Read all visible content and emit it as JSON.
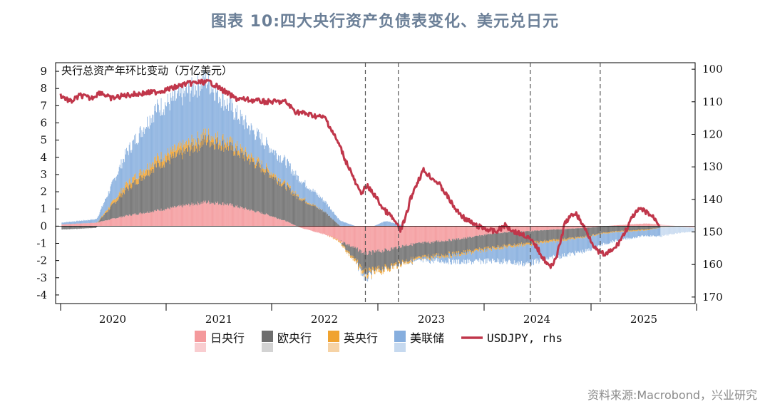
{
  "title": "图表 10:四大央行资产负债表变化、美元兑日元",
  "source": "资料来源:Macrobond，兴业研究",
  "chart_data": {
    "type": "bar",
    "stacked": true,
    "annotation": "央行总资产年环比变动（万亿美元）",
    "y_left": {
      "range": [
        -4.5,
        9.5
      ],
      "ticks": [
        9,
        8,
        7,
        6,
        5,
        4,
        3,
        2,
        1,
        0,
        -1,
        -2,
        -3,
        -4
      ]
    },
    "y_right": {
      "range": [
        172,
        98
      ],
      "inverted": true,
      "ticks": [
        100,
        110,
        120,
        130,
        140,
        150,
        160,
        170
      ]
    },
    "x_ticks": [
      "2020",
      "2021",
      "2022",
      "2023",
      "2024",
      "2025"
    ],
    "x_range": [
      2019.5,
      2025.9
    ],
    "vlines": [
      2022.6,
      2022.93,
      2024.25,
      2024.95
    ],
    "projection_start": 2025.55,
    "colors": {
      "boj": "#f4999c",
      "ecb": "#6e6e6e",
      "boe": "#f0a330",
      "fed": "#86aede",
      "usdjpy": "#c0364a"
    },
    "legend": [
      {
        "label": "日央行",
        "color": "#f4999c",
        "faint": "#f9cdd0"
      },
      {
        "label": "欧央行",
        "color": "#6e6e6e",
        "faint": "#d3d3d3"
      },
      {
        "label": "英央行",
        "color": "#f0a330",
        "faint": "#f6d3a6"
      },
      {
        "label": "美联储",
        "color": "#86aede",
        "faint": "#c6d9ef"
      },
      {
        "label": "USDJPY, rhs",
        "color": "#c0364a",
        "line": true
      }
    ],
    "series_points": {
      "boj": [
        [
          2019.55,
          0.1
        ],
        [
          2019.9,
          0.2
        ],
        [
          2020.2,
          0.6
        ],
        [
          2020.5,
          0.9
        ],
        [
          2020.8,
          1.2
        ],
        [
          2021.0,
          1.4
        ],
        [
          2021.2,
          1.3
        ],
        [
          2021.4,
          1.0
        ],
        [
          2021.6,
          0.7
        ],
        [
          2021.8,
          0.3
        ],
        [
          2021.95,
          -0.1
        ],
        [
          2022.2,
          -0.5
        ],
        [
          2022.4,
          -1.0
        ],
        [
          2022.6,
          -1.6
        ],
        [
          2022.8,
          -1.4
        ],
        [
          2023.0,
          -1.1
        ],
        [
          2023.3,
          -0.9
        ],
        [
          2023.6,
          -0.7
        ],
        [
          2023.9,
          -0.4
        ],
        [
          2024.2,
          -0.3
        ],
        [
          2024.5,
          -0.2
        ],
        [
          2024.8,
          -0.1
        ],
        [
          2025.1,
          0.05
        ],
        [
          2025.4,
          0.15
        ],
        [
          2025.55,
          0.1
        ],
        [
          2025.9,
          -0.1
        ]
      ],
      "ecb": [
        [
          2019.55,
          -0.2
        ],
        [
          2019.9,
          -0.1
        ],
        [
          2020.2,
          1.5
        ],
        [
          2020.5,
          2.6
        ],
        [
          2020.8,
          3.1
        ],
        [
          2021.0,
          3.6
        ],
        [
          2021.2,
          3.4
        ],
        [
          2021.4,
          3.0
        ],
        [
          2021.6,
          2.5
        ],
        [
          2021.8,
          2.0
        ],
        [
          2021.95,
          1.6
        ],
        [
          2022.2,
          0.8
        ],
        [
          2022.4,
          -0.3
        ],
        [
          2022.6,
          -1.1
        ],
        [
          2022.8,
          -1.0
        ],
        [
          2023.0,
          -0.9
        ],
        [
          2023.3,
          -0.8
        ],
        [
          2023.6,
          -0.8
        ],
        [
          2023.9,
          -0.8
        ],
        [
          2024.2,
          -0.7
        ],
        [
          2024.5,
          -0.6
        ],
        [
          2024.8,
          -0.5
        ],
        [
          2025.1,
          -0.3
        ],
        [
          2025.4,
          -0.2
        ],
        [
          2025.55,
          -0.1
        ],
        [
          2025.9,
          0.0
        ]
      ],
      "boe": [
        [
          2019.55,
          0.0
        ],
        [
          2019.9,
          0.0
        ],
        [
          2020.2,
          0.3
        ],
        [
          2020.5,
          0.4
        ],
        [
          2020.8,
          0.4
        ],
        [
          2021.0,
          0.35
        ],
        [
          2021.2,
          0.3
        ],
        [
          2021.4,
          0.25
        ],
        [
          2021.6,
          0.2
        ],
        [
          2021.8,
          0.15
        ],
        [
          2021.95,
          0.1
        ],
        [
          2022.2,
          0.0
        ],
        [
          2022.4,
          -0.1
        ],
        [
          2022.6,
          -0.2
        ],
        [
          2022.8,
          -0.15
        ],
        [
          2023.0,
          -0.1
        ],
        [
          2023.3,
          -0.1
        ],
        [
          2023.6,
          -0.1
        ],
        [
          2023.9,
          -0.1
        ],
        [
          2024.2,
          -0.1
        ],
        [
          2024.5,
          -0.1
        ],
        [
          2024.8,
          -0.05
        ],
        [
          2025.1,
          -0.05
        ],
        [
          2025.4,
          -0.05
        ],
        [
          2025.55,
          0.0
        ],
        [
          2025.9,
          0.0
        ]
      ],
      "fed": [
        [
          2019.55,
          0.1
        ],
        [
          2019.9,
          0.2
        ],
        [
          2020.2,
          1.8
        ],
        [
          2020.5,
          2.9
        ],
        [
          2020.8,
          3.0
        ],
        [
          2021.0,
          3.2
        ],
        [
          2021.2,
          2.2
        ],
        [
          2021.4,
          1.7
        ],
        [
          2021.6,
          1.4
        ],
        [
          2021.8,
          1.3
        ],
        [
          2021.95,
          1.0
        ],
        [
          2022.2,
          0.6
        ],
        [
          2022.4,
          0.2
        ],
        [
          2022.6,
          -0.2
        ],
        [
          2022.8,
          0.3
        ],
        [
          2023.0,
          0.0
        ],
        [
          2023.3,
          -0.2
        ],
        [
          2023.6,
          -0.5
        ],
        [
          2023.9,
          -0.7
        ],
        [
          2024.2,
          -1.1
        ],
        [
          2024.5,
          -0.9
        ],
        [
          2024.8,
          -0.8
        ],
        [
          2025.1,
          -0.5
        ],
        [
          2025.4,
          -0.3
        ],
        [
          2025.55,
          -0.5
        ],
        [
          2025.9,
          -0.2
        ]
      ],
      "usdjpy": [
        [
          2019.55,
          108
        ],
        [
          2019.65,
          110
        ],
        [
          2019.75,
          108
        ],
        [
          2019.85,
          109
        ],
        [
          2019.95,
          107
        ],
        [
          2020.05,
          109
        ],
        [
          2020.2,
          108
        ],
        [
          2020.35,
          107.5
        ],
        [
          2020.5,
          107
        ],
        [
          2020.65,
          106
        ],
        [
          2020.8,
          104.5
        ],
        [
          2020.95,
          104
        ],
        [
          2021.05,
          104
        ],
        [
          2021.2,
          107
        ],
        [
          2021.3,
          109
        ],
        [
          2021.45,
          109.5
        ],
        [
          2021.6,
          110
        ],
        [
          2021.8,
          110
        ],
        [
          2021.9,
          113
        ],
        [
          2022.05,
          114
        ],
        [
          2022.2,
          115
        ],
        [
          2022.25,
          118
        ],
        [
          2022.3,
          121
        ],
        [
          2022.35,
          124
        ],
        [
          2022.4,
          128
        ],
        [
          2022.45,
          131
        ],
        [
          2022.5,
          135
        ],
        [
          2022.55,
          138
        ],
        [
          2022.62,
          136
        ],
        [
          2022.7,
          139
        ],
        [
          2022.78,
          143
        ],
        [
          2022.85,
          145
        ],
        [
          2022.9,
          147
        ],
        [
          2022.95,
          149.5
        ],
        [
          2023.0,
          146
        ],
        [
          2023.05,
          140
        ],
        [
          2023.1,
          136
        ],
        [
          2023.18,
          131
        ],
        [
          2023.25,
          133
        ],
        [
          2023.33,
          135
        ],
        [
          2023.42,
          139
        ],
        [
          2023.5,
          143
        ],
        [
          2023.6,
          146
        ],
        [
          2023.7,
          148
        ],
        [
          2023.8,
          149
        ],
        [
          2023.9,
          150
        ],
        [
          2024.0,
          148
        ],
        [
          2024.1,
          150
        ],
        [
          2024.2,
          151
        ],
        [
          2024.3,
          154
        ],
        [
          2024.38,
          158
        ],
        [
          2024.45,
          161
        ],
        [
          2024.52,
          157
        ],
        [
          2024.6,
          147
        ],
        [
          2024.7,
          144
        ],
        [
          2024.78,
          148
        ],
        [
          2024.85,
          152
        ],
        [
          2024.92,
          156
        ],
        [
          2025.0,
          157
        ],
        [
          2025.1,
          155
        ],
        [
          2025.2,
          150
        ],
        [
          2025.28,
          145
        ],
        [
          2025.35,
          143
        ],
        [
          2025.42,
          144
        ],
        [
          2025.5,
          146
        ],
        [
          2025.55,
          148
        ]
      ]
    }
  }
}
